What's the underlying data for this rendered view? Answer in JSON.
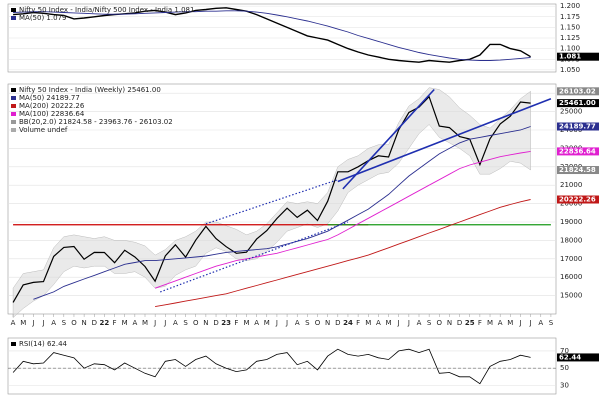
{
  "chart_data": [
    {
      "type": "line",
      "ylim": [
        1.045,
        1.205
      ],
      "yticks": [
        {
          "value": 1.05,
          "label": "1.050"
        },
        1.075,
        {
          "value": 1.1,
          "label": "1.100"
        },
        1.125,
        {
          "value": 1.15,
          "label": "1.150"
        },
        1.175,
        {
          "value": 1.2,
          "label": "1.200"
        }
      ],
      "grid": true,
      "series": [
        {
          "name": "Nifty 50 Index - India/Nifty 500 Index - India 1.081",
          "color": "#000000",
          "width": 1.4,
          "end_label": "1.081",
          "values": [
            1.18,
            1.182,
            1.185,
            1.183,
            1.18,
            1.178,
            1.17,
            1.172,
            1.175,
            1.178,
            1.18,
            1.182,
            1.184,
            1.188,
            1.19,
            1.186,
            1.18,
            1.184,
            1.19,
            1.192,
            1.195,
            1.196,
            1.192,
            1.188,
            1.18,
            1.17,
            1.16,
            1.15,
            1.14,
            1.13,
            1.125,
            1.12,
            1.11,
            1.1,
            1.092,
            1.085,
            1.08,
            1.075,
            1.072,
            1.07,
            1.068,
            1.072,
            1.07,
            1.068,
            1.072,
            1.075,
            1.085,
            1.11,
            1.11,
            1.1,
            1.095,
            1.081,
            null,
            null
          ]
        },
        {
          "name": "MA(50) 1.079",
          "color": "#2b2f8f",
          "width": 0.9,
          "values": [
            1.185,
            1.186,
            1.187,
            1.187,
            1.186,
            1.185,
            1.184,
            1.183,
            1.182,
            1.181,
            1.181,
            1.181,
            1.182,
            1.183,
            1.184,
            1.185,
            1.186,
            1.187,
            1.187,
            1.188,
            1.188,
            1.189,
            1.189,
            1.188,
            1.186,
            1.183,
            1.179,
            1.175,
            1.17,
            1.165,
            1.159,
            1.153,
            1.146,
            1.139,
            1.131,
            1.124,
            1.117,
            1.11,
            1.103,
            1.097,
            1.091,
            1.086,
            1.082,
            1.078,
            1.075,
            1.073,
            1.072,
            1.072,
            1.073,
            1.075,
            1.077,
            1.079,
            null,
            null
          ]
        }
      ]
    },
    {
      "type": "line",
      "ylim": [
        14000,
        26500
      ],
      "yticks": [
        15000,
        16000,
        17000,
        18000,
        19000,
        20000,
        21000,
        22000,
        23000,
        24000,
        25000,
        26000
      ],
      "grid": true,
      "categories": [
        "A",
        "M",
        "J",
        "J",
        "A",
        "S",
        "O",
        "N",
        "D",
        "22",
        "F",
        "M",
        "A",
        "M",
        "J",
        "J",
        "A",
        "S",
        "O",
        "N",
        "D",
        "23",
        "F",
        "M",
        "A",
        "M",
        "J",
        "J",
        "A",
        "S",
        "O",
        "N",
        "D",
        "24",
        "F",
        "M",
        "A",
        "M",
        "J",
        "J",
        "A",
        "S",
        "O",
        "N",
        "D",
        "25",
        "F",
        "M",
        "A",
        "M",
        "J",
        "J",
        "A",
        "S"
      ],
      "bands": {
        "name": "BB(20,2.0) 21824.58 - 23963.76 - 26103.02",
        "color": "#d8d8d8",
        "upper_label": "26103.02",
        "lower_label": "21824.58",
        "upper": [
          15400,
          16200,
          16300,
          16400,
          17600,
          18200,
          18300,
          18200,
          18100,
          18200,
          18000,
          18000,
          17900,
          17700,
          17200,
          17500,
          18000,
          18200,
          18500,
          19000,
          19000,
          18800,
          18600,
          18300,
          18500,
          18900,
          19500,
          20100,
          20000,
          20100,
          20000,
          20600,
          22000,
          22400,
          22600,
          23000,
          23200,
          23200,
          24400,
          25300,
          25700,
          26300,
          26200,
          25800,
          25200,
          24800,
          24300,
          24100,
          24600,
          25100,
          25700,
          26103.02,
          null,
          null
        ],
        "lower": [
          13800,
          14300,
          14700,
          15000,
          15600,
          16300,
          16600,
          16500,
          16600,
          16600,
          16200,
          16200,
          16300,
          16000,
          15400,
          15500,
          16100,
          16400,
          16600,
          17300,
          17600,
          17400,
          17000,
          16900,
          17000,
          17400,
          17900,
          18500,
          18700,
          18900,
          18700,
          18900,
          19600,
          20600,
          21000,
          21300,
          21600,
          21700,
          22200,
          23000,
          23800,
          24300,
          23600,
          23300,
          23000,
          22600,
          21600,
          21600,
          21900,
          22300,
          22200,
          21824.58,
          null,
          null
        ]
      },
      "hlines": [
        {
          "value": 18850,
          "from": 0,
          "to": 35,
          "color": "#cc0000"
        },
        {
          "value": 18850,
          "from": 31,
          "to": 53,
          "color": "#1a9a1a"
        }
      ],
      "trendlines": [
        {
          "x": [
            32.5,
            41.5
          ],
          "y": [
            20800,
            26200
          ],
          "color": "#1f2fb0",
          "dashed": false
        },
        {
          "x": [
            32,
            53
          ],
          "y": [
            21200,
            25700
          ],
          "color": "#1f2fb0",
          "dashed": false
        },
        {
          "x": [
            14.5,
            33
          ],
          "y": [
            15200,
            19000
          ],
          "color": "#1f2fb0",
          "dashed": true
        },
        {
          "x": [
            19,
            32
          ],
          "y": [
            18900,
            21300
          ],
          "color": "#1f2fb0",
          "dashed": true
        }
      ],
      "series": [
        {
          "name": "Nifty 50 Index - India (Weekly) 25461.00",
          "color": "#000000",
          "width": 1.2,
          "end_label": "25461.00",
          "values": [
            14630,
            15580,
            15720,
            15760,
            17130,
            17620,
            17670,
            16980,
            17350,
            17340,
            16790,
            17460,
            17100,
            16580,
            15780,
            17160,
            17760,
            17090,
            18010,
            18760,
            18100,
            17660,
            17300,
            17360,
            18070,
            18530,
            19190,
            19750,
            19250,
            19640,
            19080,
            20130,
            21730,
            21730,
            22000,
            22330,
            22600,
            22530,
            24010,
            24950,
            25240,
            25810,
            24210,
            24130,
            23640,
            23510,
            22120,
            23520,
            24330,
            24750,
            25520,
            25461,
            null,
            null
          ]
        },
        {
          "name": "MA(50) 24189.77",
          "color": "#2b2f8f",
          "width": 0.9,
          "end_label": "24189.77",
          "values": [
            null,
            null,
            14800,
            15000,
            15200,
            15500,
            15700,
            15900,
            16100,
            16300,
            16500,
            16700,
            16800,
            16900,
            16900,
            16950,
            17000,
            17050,
            17100,
            17150,
            17250,
            17350,
            17400,
            17450,
            17500,
            17550,
            17650,
            17800,
            17950,
            18100,
            18300,
            18500,
            18800,
            19100,
            19400,
            19700,
            20100,
            20500,
            21000,
            21500,
            21900,
            22300,
            22700,
            23000,
            23300,
            23500,
            23600,
            23700,
            23800,
            23900,
            24000,
            24189.77,
            null,
            null
          ]
        },
        {
          "name": "MA(200) 20222.26",
          "color": "#c01818",
          "width": 0.9,
          "end_label": "20222.26",
          "values": [
            null,
            null,
            null,
            null,
            null,
            null,
            null,
            null,
            null,
            null,
            null,
            null,
            null,
            null,
            14400,
            14500,
            14600,
            14700,
            14800,
            14900,
            15000,
            15100,
            15250,
            15400,
            15550,
            15700,
            15850,
            16000,
            16150,
            16300,
            16450,
            16600,
            16750,
            16900,
            17050,
            17200,
            17400,
            17600,
            17800,
            18000,
            18200,
            18400,
            18600,
            18800,
            19000,
            19200,
            19400,
            19600,
            19800,
            19950,
            20100,
            20222.26,
            null,
            null
          ]
        },
        {
          "name": "MA(100) 22836.64",
          "color": "#e020d0",
          "width": 0.9,
          "end_label": "22836.64",
          "values": [
            null,
            null,
            null,
            null,
            null,
            null,
            null,
            null,
            null,
            null,
            null,
            null,
            null,
            null,
            15400,
            15600,
            15800,
            16000,
            16200,
            16400,
            16600,
            16750,
            16900,
            17000,
            17100,
            17200,
            17300,
            17450,
            17600,
            17750,
            17900,
            18050,
            18300,
            18600,
            18900,
            19200,
            19500,
            19800,
            20100,
            20400,
            20700,
            21000,
            21300,
            21600,
            21900,
            22100,
            22250,
            22400,
            22550,
            22650,
            22750,
            22836.64,
            null,
            null
          ]
        }
      ],
      "note_legend": "Volume undef"
    },
    {
      "type": "line",
      "ylim": [
        20,
        85
      ],
      "yticks": [
        30,
        50,
        70
      ],
      "grid": true,
      "ref_line": 50,
      "series": [
        {
          "name": "RSI(14) 62.44",
          "color": "#000000",
          "width": 0.8,
          "end_label": "62.44",
          "values": [
            45,
            58,
            55,
            56,
            68,
            65,
            62,
            50,
            55,
            54,
            48,
            56,
            50,
            44,
            40,
            58,
            60,
            52,
            60,
            64,
            55,
            50,
            46,
            48,
            58,
            60,
            66,
            68,
            54,
            58,
            48,
            64,
            72,
            66,
            64,
            66,
            62,
            60,
            70,
            72,
            68,
            72,
            44,
            45,
            40,
            40,
            32,
            52,
            58,
            60,
            65,
            62.44,
            null,
            null
          ]
        }
      ]
    }
  ]
}
